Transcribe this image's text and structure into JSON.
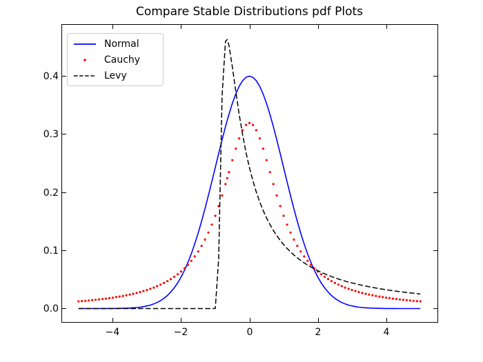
{
  "figure": {
    "background": "#ffffff"
  },
  "chart_data": {
    "type": "line",
    "title": "Compare Stable Distributions pdf Plots",
    "xlabel": "",
    "ylabel": "",
    "xlim": [
      -5.5,
      5.5
    ],
    "ylim": [
      -0.0231,
      0.4882
    ],
    "grid": false,
    "tick_direction": "in",
    "xticks": [
      -4,
      -2,
      0,
      2,
      4
    ],
    "xtick_labels": [
      "−4",
      "−2",
      "0",
      "2",
      "4"
    ],
    "yticks": [
      0.0,
      0.1,
      0.2,
      0.3,
      0.4
    ],
    "ytick_labels": [
      "0.0",
      "0.1",
      "0.2",
      "0.3",
      "0.4"
    ],
    "legend": {
      "position": "upper left",
      "entries": [
        "Normal",
        "Cauchy",
        "Levy"
      ]
    },
    "x": [
      -5,
      -4.9,
      -4.8,
      -4.7,
      -4.6,
      -4.5,
      -4.4,
      -4.3,
      -4.2,
      -4.1,
      -4,
      -3.9,
      -3.8,
      -3.7,
      -3.6,
      -3.5,
      -3.4,
      -3.3,
      -3.2,
      -3.1,
      -3,
      -2.9,
      -2.8,
      -2.7,
      -2.6,
      -2.5,
      -2.4,
      -2.3,
      -2.2,
      -2.1,
      -2,
      -1.9,
      -1.8,
      -1.7,
      -1.6,
      -1.5,
      -1.4,
      -1.3,
      -1.2,
      -1.1,
      -1,
      -0.9,
      -0.8,
      -0.7,
      -0.65,
      -0.6,
      -0.5,
      -0.4,
      -0.3,
      -0.2,
      -0.1,
      0,
      0.1,
      0.2,
      0.3,
      0.4,
      0.5,
      0.6,
      0.7,
      0.8,
      0.9,
      1,
      1.1,
      1.2,
      1.3,
      1.4,
      1.5,
      1.6,
      1.7,
      1.8,
      1.9,
      2,
      2.1,
      2.2,
      2.3,
      2.4,
      2.5,
      2.6,
      2.7,
      2.8,
      2.9,
      3,
      3.1,
      3.2,
      3.3,
      3.4,
      3.5,
      3.6,
      3.7,
      3.8,
      3.9,
      4,
      4.1,
      4.2,
      4.3,
      4.4,
      4.5,
      4.6,
      4.7,
      4.8,
      4.9,
      5
    ],
    "series": [
      {
        "name": "Normal",
        "color": "#0000ff",
        "linestyle": "solid",
        "marker": null,
        "values": [
          0,
          0,
          0,
          1e-05,
          1e-05,
          2e-05,
          2e-05,
          4e-05,
          6e-05,
          9e-05,
          0.00013,
          0.0002,
          0.00029,
          0.00042,
          0.00061,
          0.00087,
          0.00123,
          0.00172,
          0.00238,
          0.00327,
          0.00443,
          0.00595,
          0.00792,
          0.01042,
          0.01358,
          0.01753,
          0.02239,
          0.02833,
          0.03547,
          0.04398,
          0.05399,
          0.06562,
          0.07895,
          0.09405,
          0.11092,
          0.12952,
          0.14973,
          0.17137,
          0.19419,
          0.21785,
          0.24197,
          0.26609,
          0.28969,
          0.31225,
          0.32297,
          0.33322,
          0.35207,
          0.36827,
          0.38139,
          0.39104,
          0.39695,
          0.39894,
          0.39695,
          0.39104,
          0.38139,
          0.36827,
          0.35207,
          0.33322,
          0.31225,
          0.28969,
          0.26609,
          0.24197,
          0.21785,
          0.19419,
          0.17137,
          0.14973,
          0.12952,
          0.11092,
          0.09405,
          0.07895,
          0.06562,
          0.05399,
          0.04398,
          0.03547,
          0.02833,
          0.02239,
          0.01753,
          0.01358,
          0.01042,
          0.00792,
          0.00595,
          0.00443,
          0.00327,
          0.00238,
          0.00172,
          0.00123,
          0.00087,
          0.00061,
          0.00042,
          0.00029,
          0.0002,
          0.00013,
          9e-05,
          6e-05,
          4e-05,
          2e-05,
          2e-05,
          1e-05,
          1e-05,
          0,
          0,
          0
        ]
      },
      {
        "name": "Cauchy",
        "color": "#ff0000",
        "linestyle": "none",
        "marker": "dot",
        "values": [
          0.01224,
          0.01273,
          0.01324,
          0.01379,
          0.01436,
          0.01498,
          0.01563,
          0.01633,
          0.01708,
          0.01787,
          0.01872,
          0.01964,
          0.02062,
          0.02167,
          0.0228,
          0.02402,
          0.02534,
          0.02677,
          0.02832,
          0.03,
          0.03183,
          0.03383,
          0.03601,
          0.0384,
          0.04102,
          0.04391,
          0.04709,
          0.05061,
          0.0545,
          0.05884,
          0.06366,
          0.06905,
          0.07507,
          0.08183,
          0.08942,
          0.09794,
          0.10754,
          0.11833,
          0.13046,
          0.14403,
          0.15915,
          0.17586,
          0.19409,
          0.21363,
          0.22378,
          0.23405,
          0.25465,
          0.2744,
          0.29203,
          0.30607,
          0.31516,
          0.31831,
          0.31516,
          0.30607,
          0.29203,
          0.2744,
          0.25465,
          0.23405,
          0.21363,
          0.19409,
          0.17586,
          0.15915,
          0.14403,
          0.13046,
          0.11833,
          0.10754,
          0.09794,
          0.08942,
          0.08183,
          0.07507,
          0.06905,
          0.06366,
          0.05884,
          0.0545,
          0.05061,
          0.04709,
          0.04391,
          0.04102,
          0.0384,
          0.03601,
          0.03383,
          0.03183,
          0.03,
          0.02832,
          0.02677,
          0.02534,
          0.02402,
          0.0228,
          0.02167,
          0.02062,
          0.01964,
          0.01872,
          0.01787,
          0.01708,
          0.01633,
          0.01563,
          0.01498,
          0.01436,
          0.01379,
          0.01324,
          0.01273,
          0.01224
        ]
      },
      {
        "name": "Levy",
        "color": "#000000",
        "linestyle": "dashed",
        "marker": null,
        "values": [
          0,
          0,
          0,
          0,
          0,
          0,
          0,
          0,
          0,
          0,
          0,
          0,
          0,
          0,
          0,
          0,
          0,
          0,
          0,
          0,
          0,
          0,
          0,
          0,
          0,
          0,
          0,
          0,
          0,
          0,
          0,
          0,
          0,
          0,
          0,
          0,
          0,
          0,
          0,
          0,
          0,
          0.085,
          0.36612,
          0.45857,
          0.46177,
          0.45181,
          0.41511,
          0.37305,
          0.33345,
          0.29843,
          0.26809,
          0.24197,
          0.21949,
          0.20007,
          0.18322,
          0.16852,
          0.1556,
          0.14422,
          0.13413,
          0.12513,
          0.11709,
          0.10985,
          0.10333,
          0.09744,
          0.09205,
          0.08712,
          0.08263,
          0.07851,
          0.07471,
          0.07121,
          0.06798,
          0.06499,
          0.06221,
          0.05961,
          0.05719,
          0.05492,
          0.05279,
          0.05079,
          0.04891,
          0.04711,
          0.04544,
          0.04401,
          0.04254,
          0.04114,
          0.03983,
          0.03858,
          0.0374,
          0.03628,
          0.03521,
          0.03419,
          0.03323,
          0.03229,
          0.0314,
          0.03056,
          0.02975,
          0.02897,
          0.02824,
          0.02753,
          0.02685,
          0.0262,
          0.02558,
          0.02497
        ]
      }
    ]
  }
}
